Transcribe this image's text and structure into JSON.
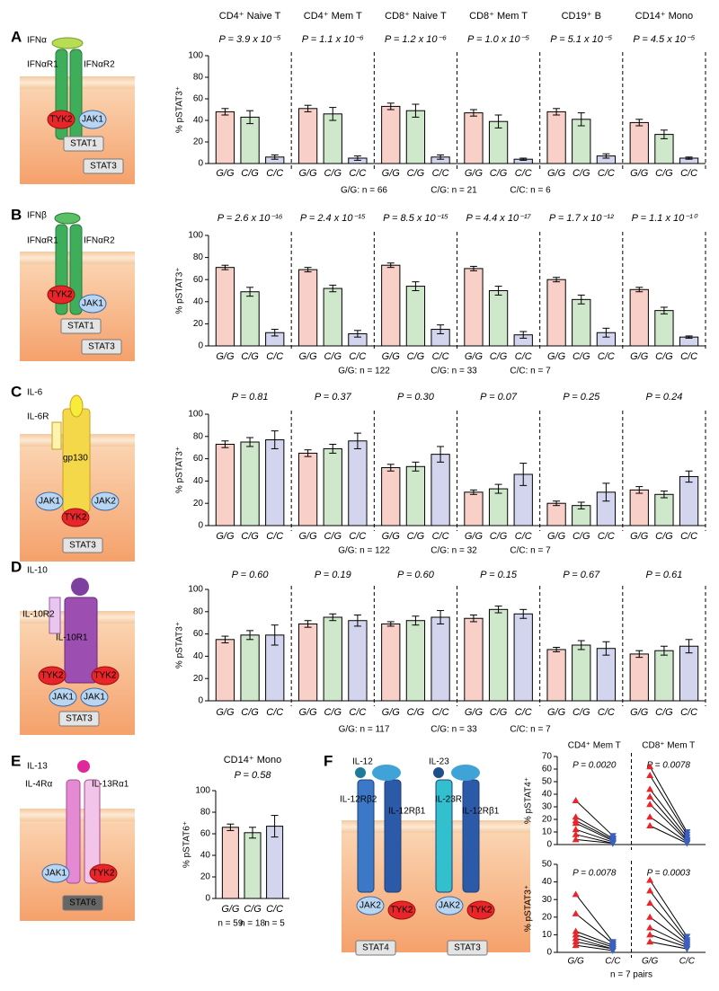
{
  "chart_data": [
    {
      "type": "bar-groups",
      "y_label": "% pSTAT3⁺",
      "categories": [
        "G/G",
        "C/G",
        "C/C"
      ],
      "colors": [
        "#f9d0c8",
        "#cfe8cb",
        "#d3d5ee"
      ],
      "ylim": [
        0,
        100
      ],
      "yticks": [
        0,
        20,
        40,
        60,
        80,
        100
      ],
      "n_labels": [
        "G/G: n = 66",
        "C/G: n = 21",
        "C/C: n = 6"
      ],
      "groups": [
        {
          "name": "CD4⁺ Naive T",
          "p_value": "P = 3.9 x 10⁻⁵",
          "values": [
            48,
            43,
            6
          ],
          "errors": [
            3,
            6,
            2
          ]
        },
        {
          "name": "CD4⁺ Mem T",
          "p_value": "P = 1.1 x 10⁻⁶",
          "values": [
            51,
            46,
            5
          ],
          "errors": [
            3,
            6,
            2
          ]
        },
        {
          "name": "CD8⁺ Naive T",
          "p_value": "P = 1.2 x 10⁻⁶",
          "values": [
            53,
            49,
            6
          ],
          "errors": [
            3,
            6,
            2
          ]
        },
        {
          "name": "CD8⁺ Mem T",
          "p_value": "P = 1.0 x 10⁻⁵",
          "values": [
            47,
            39,
            4
          ],
          "errors": [
            3,
            6,
            1
          ]
        },
        {
          "name": "CD19⁺ B",
          "p_value": "P = 5.1 x 10⁻⁵",
          "values": [
            48,
            41,
            7
          ],
          "errors": [
            3,
            6,
            2
          ]
        },
        {
          "name": "CD14⁺ Mono",
          "p_value": "P = 4.5 x 10⁻⁵",
          "values": [
            38,
            27,
            5
          ],
          "errors": [
            3,
            4,
            1
          ]
        }
      ]
    },
    {
      "type": "bar-groups",
      "y_label": "% pSTAT3⁺",
      "categories": [
        "G/G",
        "C/G",
        "C/C"
      ],
      "colors": [
        "#f9d0c8",
        "#cfe8cb",
        "#d3d5ee"
      ],
      "ylim": [
        0,
        100
      ],
      "yticks": [
        0,
        20,
        40,
        60,
        80,
        100
      ],
      "n_labels": [
        "G/G: n = 122",
        "C/G: n = 33",
        "C/C: n = 7"
      ],
      "groups": [
        {
          "p_value": "P = 2.6 x 10⁻¹⁶",
          "values": [
            71,
            49,
            12
          ],
          "errors": [
            2,
            4,
            3
          ]
        },
        {
          "p_value": "P = 2.4 x 10⁻¹⁵",
          "values": [
            69,
            52,
            11
          ],
          "errors": [
            2,
            3,
            3
          ]
        },
        {
          "p_value": "P = 8.5 x 10⁻¹⁵",
          "values": [
            73,
            54,
            15
          ],
          "errors": [
            2,
            4,
            4
          ]
        },
        {
          "p_value": "P = 4.4 x 10⁻¹⁷",
          "values": [
            70,
            50,
            10
          ],
          "errors": [
            2,
            4,
            3
          ]
        },
        {
          "p_value": "P = 1.7 x 10⁻¹²",
          "values": [
            60,
            42,
            12
          ],
          "errors": [
            2,
            4,
            4
          ]
        },
        {
          "p_value": "P = 1.1 x 10⁻¹⁰",
          "values": [
            51,
            32,
            8
          ],
          "errors": [
            2,
            3,
            1
          ]
        }
      ]
    },
    {
      "type": "bar-groups",
      "y_label": "% pSTAT3⁺",
      "categories": [
        "G/G",
        "C/G",
        "C/C"
      ],
      "colors": [
        "#f9d0c8",
        "#cfe8cb",
        "#d3d5ee"
      ],
      "ylim": [
        0,
        100
      ],
      "yticks": [
        0,
        20,
        40,
        60,
        80,
        100
      ],
      "n_labels": [
        "G/G: n = 122",
        "C/G: n = 32",
        "C/C: n = 7"
      ],
      "groups": [
        {
          "p_value": "P = 0.81",
          "values": [
            73,
            75,
            77
          ],
          "errors": [
            3,
            4,
            8
          ]
        },
        {
          "p_value": "P = 0.37",
          "values": [
            65,
            69,
            76
          ],
          "errors": [
            3,
            4,
            7
          ]
        },
        {
          "p_value": "P = 0.30",
          "values": [
            52,
            53,
            64
          ],
          "errors": [
            3,
            4,
            7
          ]
        },
        {
          "p_value": "P = 0.07",
          "values": [
            30,
            33,
            46
          ],
          "errors": [
            2,
            4,
            10
          ]
        },
        {
          "p_value": "P = 0.25",
          "values": [
            20,
            18,
            30
          ],
          "errors": [
            2,
            3,
            8
          ]
        },
        {
          "p_value": "P = 0.24",
          "values": [
            32,
            28,
            44
          ],
          "errors": [
            3,
            3,
            5
          ]
        }
      ]
    },
    {
      "type": "bar-groups",
      "y_label": "% pSTAT3⁺",
      "categories": [
        "G/G",
        "C/G",
        "C/C"
      ],
      "colors": [
        "#f9d0c8",
        "#cfe8cb",
        "#d3d5ee"
      ],
      "ylim": [
        0,
        100
      ],
      "yticks": [
        0,
        20,
        40,
        60,
        80,
        100
      ],
      "n_labels": [
        "G/G: n = 117",
        "C/G: n = 33",
        "C/C: n = 7"
      ],
      "groups": [
        {
          "p_value": "P = 0.60",
          "values": [
            55,
            59,
            59
          ],
          "errors": [
            3,
            4,
            9
          ]
        },
        {
          "p_value": "P = 0.19",
          "values": [
            69,
            75,
            72
          ],
          "errors": [
            3,
            3,
            5
          ]
        },
        {
          "p_value": "P = 0.60",
          "values": [
            69,
            72,
            75
          ],
          "errors": [
            2,
            4,
            6
          ]
        },
        {
          "p_value": "P = 0.15",
          "values": [
            74,
            82,
            78
          ],
          "errors": [
            3,
            3,
            4
          ]
        },
        {
          "p_value": "P = 0.67",
          "values": [
            46,
            50,
            47
          ],
          "errors": [
            2,
            4,
            6
          ]
        },
        {
          "p_value": "P = 0.61",
          "values": [
            42,
            45,
            49
          ],
          "errors": [
            3,
            4,
            6
          ]
        }
      ]
    },
    {
      "type": "bar-groups",
      "y_label": "% pSTAT6⁺",
      "categories": [
        "G/G",
        "C/G",
        "C/C"
      ],
      "colors": [
        "#f9d0c8",
        "#cfe8cb",
        "#d3d5ee"
      ],
      "ylim": [
        0,
        100
      ],
      "yticks": [
        0,
        20,
        40,
        60,
        80,
        100
      ],
      "n_labels": [
        "n = 59",
        "n = 18",
        "n = 5"
      ],
      "groups": [
        {
          "name": "CD14⁺ Mono",
          "p_value": "P = 0.58",
          "values": [
            66,
            61,
            67
          ],
          "errors": [
            3,
            5,
            10
          ]
        }
      ]
    },
    {
      "type": "paired",
      "y_label": "% pSTAT4⁺",
      "colors": [
        "#e8262a",
        "#3a5fbf"
      ],
      "ylim": [
        0,
        70
      ],
      "yticks": [
        0,
        10,
        20,
        30,
        40,
        50,
        60,
        70
      ],
      "groups": [
        {
          "name": "CD4⁺ Mem T",
          "p_value": "P = 0.0020",
          "gg": [
            35,
            22,
            19,
            17,
            12,
            8,
            4
          ],
          "cc": [
            7,
            5,
            4,
            3,
            2,
            1,
            1
          ]
        },
        {
          "name": "CD8⁺ Mem T",
          "p_value": "P = 0.0078",
          "gg": [
            62,
            55,
            44,
            38,
            32,
            22,
            15
          ],
          "cc": [
            10,
            8,
            6,
            4,
            3,
            2,
            1
          ]
        }
      ]
    },
    {
      "type": "paired",
      "y_label": "% pSTAT3⁺",
      "colors": [
        "#e8262a",
        "#3a5fbf"
      ],
      "ylim": [
        0,
        50
      ],
      "yticks": [
        0,
        10,
        20,
        30,
        40,
        50
      ],
      "categories": [
        "G/G",
        "C/C"
      ],
      "note": "n = 7 pairs",
      "groups": [
        {
          "p_value": "P = 0.0078",
          "gg": [
            33,
            22,
            12,
            10,
            8,
            6,
            4
          ],
          "cc": [
            6,
            5,
            4,
            3,
            2,
            2,
            1
          ]
        },
        {
          "p_value": "P = 0.0003",
          "gg": [
            41,
            35,
            28,
            20,
            14,
            10,
            6
          ],
          "cc": [
            9,
            7,
            6,
            5,
            4,
            3,
            2
          ]
        }
      ]
    }
  ],
  "diagrams": [
    {
      "letter": "A",
      "labels": [
        "IFNα",
        "IFNαR1",
        "IFNαR2",
        "TYK2",
        "JAK1",
        "STAT1",
        "STAT3"
      ]
    },
    {
      "letter": "B",
      "labels": [
        "IFNβ",
        "IFNαR1",
        "IFNαR2",
        "TYK2",
        "JAK1",
        "STAT1",
        "STAT3"
      ]
    },
    {
      "letter": "C",
      "labels": [
        "IL-6",
        "IL-6R",
        "gp130",
        "JAK1",
        "JAK2",
        "TYK2",
        "STAT3"
      ]
    },
    {
      "letter": "D",
      "labels": [
        "IL-10",
        "IL-10R2",
        "IL-10R1",
        "TYK2",
        "TYK2",
        "JAK1",
        "JAK1",
        "STAT3"
      ]
    },
    {
      "letter": "E",
      "labels": [
        "IL-13",
        "IL-4Rα",
        "IL-13Rα1",
        "JAK1",
        "TYK2",
        "STAT6"
      ]
    },
    {
      "letter": "F",
      "labels": [
        "IL-12",
        "IL-23",
        "IL-12Rβ2",
        "IL-12Rβ1",
        "IL-23R",
        "IL-12Rβ1",
        "JAK2",
        "TYK2",
        "JAK2",
        "TYK2",
        "STAT4",
        "STAT3"
      ]
    }
  ]
}
